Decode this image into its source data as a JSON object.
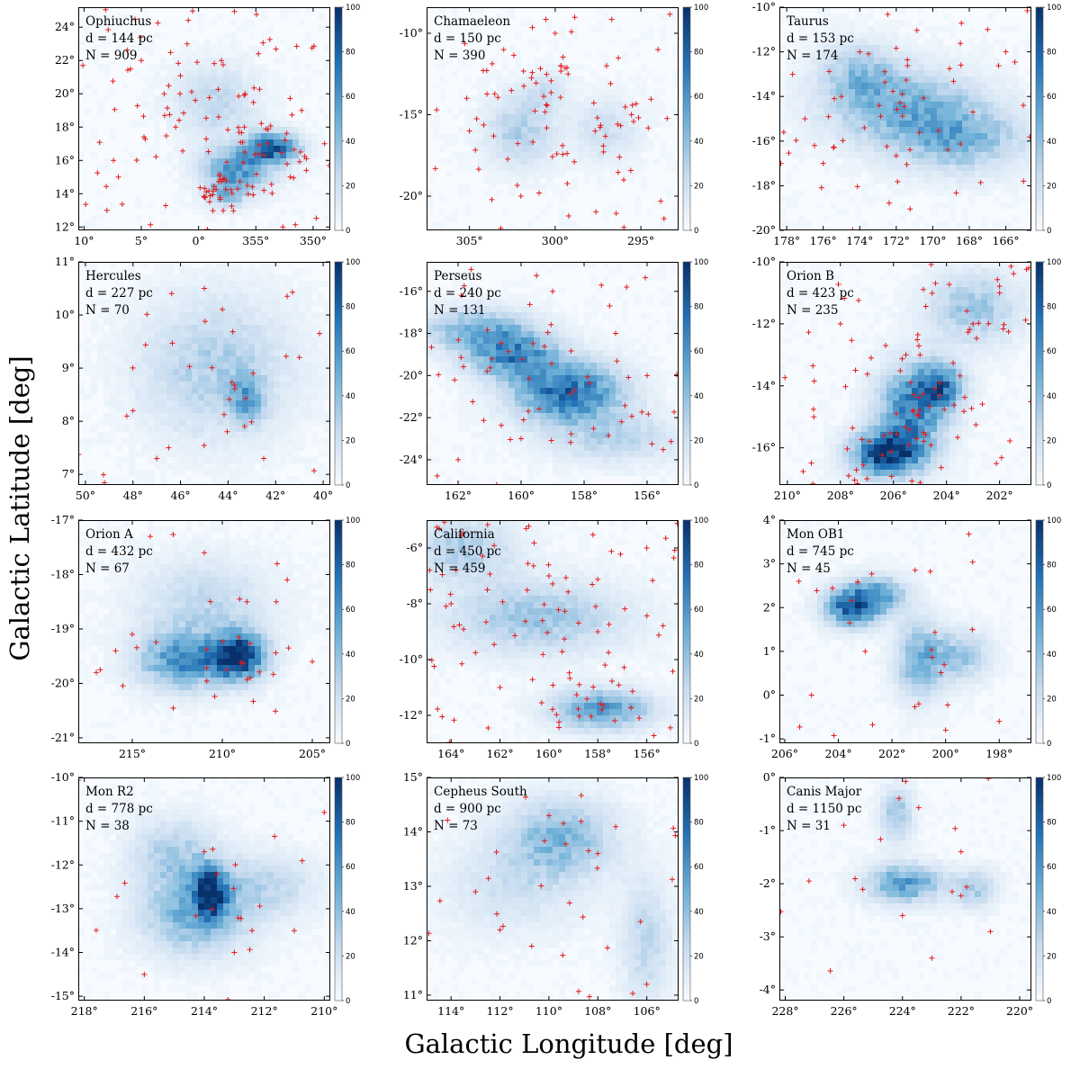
{
  "figure": {
    "xlabel": "Galactic Longitude [deg]",
    "ylabel": "Galactic Latitude [deg]",
    "colorbar_ticks": [
      "0",
      "20",
      "40",
      "60",
      "80",
      "100"
    ],
    "colorbar_range": [
      0,
      100
    ],
    "colormap": [
      "#f7fbff",
      "#c6dbef",
      "#6baed6",
      "#2171b5",
      "#08306b"
    ],
    "marker_color": "#e41a1c",
    "marker": "plus"
  },
  "chart_data": [
    {
      "type": "heatmap",
      "name": "Ophiuchus",
      "labels": [
        "Ophiuchus",
        "d = 144 pc",
        "N = 909"
      ],
      "distance_pc": 144,
      "N": 909,
      "xlim": [
        10.5,
        348.5
      ],
      "ylim": [
        11.8,
        25.2
      ],
      "x_reversed": true,
      "xticks": [
        10,
        5,
        0,
        355,
        350
      ],
      "xtick_labels": [
        "10°",
        "5°",
        "0°",
        "355°",
        "350°"
      ],
      "yticks": [
        12,
        14,
        16,
        18,
        20,
        22,
        24
      ],
      "ytick_labels": [
        "12°",
        "14°",
        "16°",
        "18°",
        "20°",
        "22°",
        "24°"
      ],
      "blobs": [
        {
          "x": 353.5,
          "y": 16.8,
          "sx": 1.6,
          "sy": 0.6,
          "v": 80
        },
        {
          "x": 356.5,
          "y": 15.5,
          "sx": 2.2,
          "sy": 0.9,
          "v": 55
        },
        {
          "x": 358.5,
          "y": 19.5,
          "sx": 2.5,
          "sy": 1.5,
          "v": 25
        },
        {
          "x": 357.5,
          "y": 14.0,
          "sx": 1.2,
          "sy": 0.6,
          "v": 35
        }
      ],
      "stars": [
        [
          5,
          22
        ],
        [
          3,
          20
        ],
        [
          2,
          18
        ],
        [
          8,
          13
        ],
        [
          7,
          15
        ],
        [
          1,
          23
        ],
        [
          358,
          22
        ],
        [
          356,
          18
        ],
        [
          354,
          17
        ],
        [
          352,
          15
        ],
        [
          351,
          19
        ],
        [
          349,
          17
        ]
      ],
      "n_random": 140
    },
    {
      "type": "heatmap",
      "name": "Chamaeleon",
      "labels": [
        "Chamaeleon",
        "d = 150 pc",
        "N = 390"
      ],
      "distance_pc": 150,
      "N": 390,
      "xlim": [
        307.5,
        292.8
      ],
      "ylim": [
        -22.1,
        -8.4
      ],
      "x_reversed": true,
      "xticks": [
        305,
        300,
        295
      ],
      "xtick_labels": [
        "305°",
        "300°",
        "295°"
      ],
      "yticks": [
        -10,
        -15,
        -20
      ],
      "ytick_labels": [
        "-10°",
        "-15°",
        "-20°"
      ],
      "blobs": [
        {
          "x": 302.0,
          "y": -16.0,
          "sx": 1.4,
          "sy": 1.5,
          "v": 30
        },
        {
          "x": 297.0,
          "y": -16.0,
          "sx": 1.3,
          "sy": 1.3,
          "v": 20
        },
        {
          "x": 300.5,
          "y": -13.5,
          "sx": 0.8,
          "sy": 0.8,
          "v": 18
        }
      ],
      "stars": [
        [
          303,
          -11
        ],
        [
          300,
          -10
        ],
        [
          297,
          -12
        ],
        [
          294,
          -11
        ],
        [
          305,
          -16
        ],
        [
          296,
          -19
        ],
        [
          302,
          -20
        ]
      ],
      "n_random": 90
    },
    {
      "type": "heatmap",
      "name": "Taurus",
      "labels": [
        "Taurus",
        "d = 153 pc",
        "N = 174"
      ],
      "distance_pc": 153,
      "N": 174,
      "xlim": [
        178.4,
        164.6
      ],
      "ylim": [
        -20.0,
        -10.0
      ],
      "x_reversed": true,
      "xticks": [
        178,
        176,
        174,
        172,
        170,
        168,
        166
      ],
      "xtick_labels": [
        "178°",
        "176°",
        "174°",
        "172°",
        "170°",
        "168°",
        "166°"
      ],
      "yticks": [
        -10,
        -12,
        -14,
        -16,
        -18,
        -20
      ],
      "ytick_labels": [
        "-10°",
        "-12°",
        "-14°",
        "-16°",
        "-18°",
        "-20°"
      ],
      "blobs": [
        {
          "x": 171.5,
          "y": -14.5,
          "sx": 3.0,
          "sy": 1.2,
          "v": 40
        },
        {
          "x": 168.5,
          "y": -16.0,
          "sx": 2.5,
          "sy": 1.0,
          "v": 38
        },
        {
          "x": 174.0,
          "y": -13.0,
          "sx": 1.5,
          "sy": 1.0,
          "v": 30
        }
      ],
      "stars": [
        [
          177,
          -15
        ],
        [
          176,
          -17
        ],
        [
          175,
          -14
        ],
        [
          174,
          -12
        ],
        [
          167,
          -11
        ],
        [
          166,
          -12
        ]
      ],
      "n_random": 60
    },
    {
      "type": "heatmap",
      "name": "Hercules",
      "labels": [
        "Hercules",
        "d = 227 pc",
        "N = 70"
      ],
      "distance_pc": 227,
      "N": 70,
      "xlim": [
        50.3,
        39.7
      ],
      "ylim": [
        6.8,
        11.0
      ],
      "x_reversed": true,
      "xticks": [
        50,
        48,
        46,
        44,
        42,
        40
      ],
      "xtick_labels": [
        "50°",
        "48°",
        "46°",
        "44°",
        "42°",
        "40°"
      ],
      "yticks": [
        7,
        8,
        9,
        10,
        11
      ],
      "ytick_labels": [
        "7°",
        "8°",
        "9°",
        "10°",
        "11°"
      ],
      "blobs": [
        {
          "x": 44.5,
          "y": 9.0,
          "sx": 2.2,
          "sy": 0.9,
          "v": 30
        },
        {
          "x": 43.2,
          "y": 8.4,
          "sx": 0.5,
          "sy": 0.3,
          "v": 40
        }
      ],
      "stars": [
        [
          47,
          7.3
        ],
        [
          46.5,
          7.5
        ],
        [
          48,
          8.2
        ],
        [
          45,
          10.5
        ],
        [
          41,
          9.2
        ],
        [
          42.5,
          7.3
        ]
      ],
      "n_random": 30
    },
    {
      "type": "heatmap",
      "name": "Perseus",
      "labels": [
        "Perseus",
        "d = 240 pc",
        "N = 131"
      ],
      "distance_pc": 240,
      "N": 131,
      "xlim": [
        163.0,
        155.0
      ],
      "ylim": [
        -25.2,
        -14.6
      ],
      "x_reversed": true,
      "xticks": [
        162,
        160,
        158,
        156
      ],
      "xtick_labels": [
        "162°",
        "160°",
        "158°",
        "156°"
      ],
      "yticks": [
        -16,
        -18,
        -20,
        -22,
        -24
      ],
      "ytick_labels": [
        "-16°",
        "-18°",
        "-20°",
        "-22°",
        "-24°"
      ],
      "blobs": [
        {
          "x": 158.5,
          "y": -20.8,
          "sx": 1.2,
          "sy": 1.0,
          "v": 75
        },
        {
          "x": 160.3,
          "y": -19.0,
          "sx": 1.0,
          "sy": 0.8,
          "v": 60
        },
        {
          "x": 161.5,
          "y": -17.8,
          "sx": 1.2,
          "sy": 0.7,
          "v": 40
        },
        {
          "x": 157.0,
          "y": -23.0,
          "sx": 1.5,
          "sy": 0.8,
          "v": 25
        }
      ],
      "stars": [
        [
          159,
          -16
        ],
        [
          157,
          -18
        ],
        [
          160,
          -23
        ],
        [
          156,
          -20
        ],
        [
          162,
          -24
        ]
      ],
      "n_random": 60
    },
    {
      "type": "heatmap",
      "name": "Orion B",
      "labels": [
        "Orion B",
        "d = 423 pc",
        "N = 235"
      ],
      "distance_pc": 423,
      "N": 235,
      "xlim": [
        210.3,
        200.8
      ],
      "ylim": [
        -17.2,
        -10.0
      ],
      "x_reversed": true,
      "xticks": [
        210,
        208,
        206,
        204,
        202
      ],
      "xtick_labels": [
        "210°",
        "208°",
        "206°",
        "204°",
        "202°"
      ],
      "yticks": [
        -10,
        -12,
        -14,
        -16
      ],
      "ytick_labels": [
        "-10°",
        "-12°",
        "-14°",
        "-16°"
      ],
      "blobs": [
        {
          "x": 206.3,
          "y": -16.2,
          "sx": 0.9,
          "sy": 0.5,
          "v": 90
        },
        {
          "x": 205.3,
          "y": -14.8,
          "sx": 0.9,
          "sy": 1.0,
          "v": 65
        },
        {
          "x": 204.2,
          "y": -14.0,
          "sx": 0.6,
          "sy": 0.5,
          "v": 60
        },
        {
          "x": 203.0,
          "y": -11.5,
          "sx": 1.2,
          "sy": 0.8,
          "v": 35
        }
      ],
      "stars": [
        [
          208,
          -12
        ],
        [
          205,
          -13
        ],
        [
          203,
          -12
        ],
        [
          202,
          -11
        ],
        [
          209,
          -15
        ],
        [
          207,
          -17
        ]
      ],
      "n_random": 100
    },
    {
      "type": "heatmap",
      "name": "Orion A",
      "labels": [
        "Orion A",
        "d = 432 pc",
        "N = 67"
      ],
      "distance_pc": 432,
      "N": 67,
      "xlim": [
        218.0,
        204.0
      ],
      "ylim": [
        -21.1,
        -17.0
      ],
      "x_reversed": true,
      "xticks": [
        215,
        210,
        205
      ],
      "xtick_labels": [
        "215°",
        "210°",
        "205°"
      ],
      "yticks": [
        -17,
        -18,
        -19,
        -20,
        -21
      ],
      "ytick_labels": [
        "-17°",
        "-18°",
        "-19°",
        "-20°",
        "-21°"
      ],
      "blobs": [
        {
          "x": 209.0,
          "y": -19.5,
          "sx": 1.0,
          "sy": 0.3,
          "v": 85
        },
        {
          "x": 212.0,
          "y": -19.6,
          "sx": 1.8,
          "sy": 0.35,
          "v": 60
        },
        {
          "x": 211.0,
          "y": -18.6,
          "sx": 2.5,
          "sy": 0.6,
          "v": 25
        }
      ],
      "stars": [
        [
          214,
          -17.3
        ],
        [
          211,
          -17.6
        ],
        [
          215,
          -19.1
        ],
        [
          207,
          -18.5
        ],
        [
          205,
          -19.6
        ],
        [
          217,
          -19.8
        ]
      ],
      "n_random": 30
    },
    {
      "type": "heatmap",
      "name": "California",
      "labels": [
        "California",
        "d = 450 pc",
        "N = 459"
      ],
      "distance_pc": 450,
      "N": 459,
      "xlim": [
        165.0,
        154.7
      ],
      "ylim": [
        -13.0,
        -5.0
      ],
      "x_reversed": true,
      "xticks": [
        164,
        162,
        160,
        158,
        156
      ],
      "xtick_labels": [
        "164°",
        "162°",
        "160°",
        "158°",
        "156°"
      ],
      "yticks": [
        -6,
        -8,
        -10,
        -12
      ],
      "ytick_labels": [
        "-6°",
        "-8°",
        "-10°",
        "-12°"
      ],
      "blobs": [
        {
          "x": 157.8,
          "y": -11.8,
          "sx": 1.4,
          "sy": 0.5,
          "v": 55
        },
        {
          "x": 160.5,
          "y": -8.5,
          "sx": 2.5,
          "sy": 0.9,
          "v": 35
        },
        {
          "x": 163.5,
          "y": -6.0,
          "sx": 1.5,
          "sy": 0.8,
          "v": 30
        }
      ],
      "stars": [
        [
          160,
          -7
        ],
        [
          158,
          -9
        ],
        [
          162,
          -11
        ],
        [
          156,
          -6
        ],
        [
          164,
          -8
        ]
      ],
      "n_random": 110
    },
    {
      "type": "heatmap",
      "name": "Mon OB1",
      "labels": [
        "Mon OB1",
        "d = 745 pc",
        "N = 45"
      ],
      "distance_pc": 745,
      "N": 45,
      "xlim": [
        206.2,
        196.8
      ],
      "ylim": [
        -1.1,
        4.0
      ],
      "x_reversed": true,
      "xticks": [
        206,
        204,
        202,
        200,
        198
      ],
      "xtick_labels": [
        "206°",
        "204°",
        "202°",
        "200°",
        "198°"
      ],
      "yticks": [
        -1,
        0,
        1,
        2,
        3,
        4
      ],
      "ytick_labels": [
        "-1°",
        "0°",
        "1°",
        "2°",
        "3°",
        "4°"
      ],
      "blobs": [
        {
          "x": 203.5,
          "y": 2.0,
          "sx": 0.7,
          "sy": 0.3,
          "v": 75
        },
        {
          "x": 202.5,
          "y": 2.3,
          "sx": 0.8,
          "sy": 0.3,
          "v": 45
        },
        {
          "x": 201.0,
          "y": 0.8,
          "sx": 0.6,
          "sy": 0.6,
          "v": 45
        },
        {
          "x": 199.5,
          "y": 0.9,
          "sx": 0.8,
          "sy": 0.4,
          "v": 35
        }
      ],
      "stars": [
        [
          203,
          1
        ],
        [
          201,
          -0.2
        ],
        [
          199,
          1.5
        ],
        [
          205,
          0
        ],
        [
          198,
          -0.6
        ],
        [
          200,
          -0.8
        ]
      ],
      "n_random": 22
    },
    {
      "type": "heatmap",
      "name": "Mon R2",
      "labels": [
        "Mon R2",
        "d = 778 pc",
        "N = 38"
      ],
      "distance_pc": 778,
      "N": 38,
      "xlim": [
        218.2,
        209.8
      ],
      "ylim": [
        -15.1,
        -10.0
      ],
      "x_reversed": true,
      "xticks": [
        218,
        216,
        214,
        212,
        210
      ],
      "xtick_labels": [
        "218°",
        "216°",
        "214°",
        "212°",
        "210°"
      ],
      "yticks": [
        -10,
        -11,
        -12,
        -13,
        -14,
        -15
      ],
      "ytick_labels": [
        "-10°",
        "-11°",
        "-12°",
        "-13°",
        "-14°",
        "-15°"
      ],
      "blobs": [
        {
          "x": 213.8,
          "y": -12.6,
          "sx": 0.4,
          "sy": 0.4,
          "v": 75
        },
        {
          "x": 214.3,
          "y": -13.2,
          "sx": 1.2,
          "sy": 0.6,
          "v": 45
        },
        {
          "x": 215.0,
          "y": -11.8,
          "sx": 1.0,
          "sy": 0.6,
          "v": 30
        },
        {
          "x": 212.0,
          "y": -12.5,
          "sx": 1.2,
          "sy": 0.5,
          "v": 25
        }
      ],
      "stars": [
        [
          214,
          -11.7
        ],
        [
          213,
          -14
        ],
        [
          211,
          -13.5
        ],
        [
          216,
          -14.5
        ],
        [
          210,
          -10.8
        ]
      ],
      "n_random": 18
    },
    {
      "type": "heatmap",
      "name": "Cepheus South",
      "labels": [
        "Cepheus South",
        "d = 900 pc",
        "N = 73"
      ],
      "distance_pc": 900,
      "N": 73,
      "xlim": [
        115.0,
        104.7
      ],
      "ylim": [
        10.9,
        15.0
      ],
      "x_reversed": true,
      "xticks": [
        114,
        112,
        110,
        108,
        106
      ],
      "xtick_labels": [
        "114°",
        "112°",
        "110°",
        "108°",
        "106°"
      ],
      "yticks": [
        11,
        12,
        13,
        14,
        15
      ],
      "ytick_labels": [
        "11°",
        "12°",
        "13°",
        "14°",
        "15°"
      ],
      "blobs": [
        {
          "x": 109.5,
          "y": 13.9,
          "sx": 1.5,
          "sy": 0.5,
          "v": 40
        },
        {
          "x": 106.0,
          "y": 12.0,
          "sx": 0.7,
          "sy": 0.8,
          "v": 25
        },
        {
          "x": 111.5,
          "y": 13.0,
          "sx": 2.0,
          "sy": 0.6,
          "v": 18
        }
      ],
      "stars": [
        [
          110,
          14.3
        ],
        [
          108,
          13.6
        ],
        [
          112,
          12.2
        ],
        [
          106,
          11.2
        ],
        [
          113,
          12.9
        ]
      ],
      "n_random": 32
    },
    {
      "type": "heatmap",
      "name": "Canis Major",
      "labels": [
        "Canis Major",
        "d = 1150 pc",
        "N = 31"
      ],
      "distance_pc": 1150,
      "N": 31,
      "xlim": [
        228.2,
        219.6
      ],
      "ylim": [
        -4.2,
        0.0
      ],
      "x_reversed": true,
      "xticks": [
        228,
        226,
        224,
        222,
        220
      ],
      "xtick_labels": [
        "228°",
        "226°",
        "224°",
        "222°",
        "220°"
      ],
      "yticks": [
        0,
        -1,
        -2,
        -3,
        -4
      ],
      "ytick_labels": [
        "0°",
        "-1°",
        "-2°",
        "-3°",
        "-4°"
      ],
      "blobs": [
        {
          "x": 223.9,
          "y": -2.0,
          "sx": 0.9,
          "sy": 0.25,
          "v": 55
        },
        {
          "x": 224.2,
          "y": -0.7,
          "sx": 0.4,
          "sy": 0.35,
          "v": 35
        },
        {
          "x": 221.5,
          "y": -2.1,
          "sx": 0.5,
          "sy": 0.25,
          "v": 30
        }
      ],
      "stars": [
        [
          224,
          -2.6
        ],
        [
          222,
          -1.4
        ],
        [
          221,
          -2.9
        ],
        [
          226,
          -0.9
        ],
        [
          223,
          -3.4
        ]
      ],
      "n_random": 14
    }
  ]
}
